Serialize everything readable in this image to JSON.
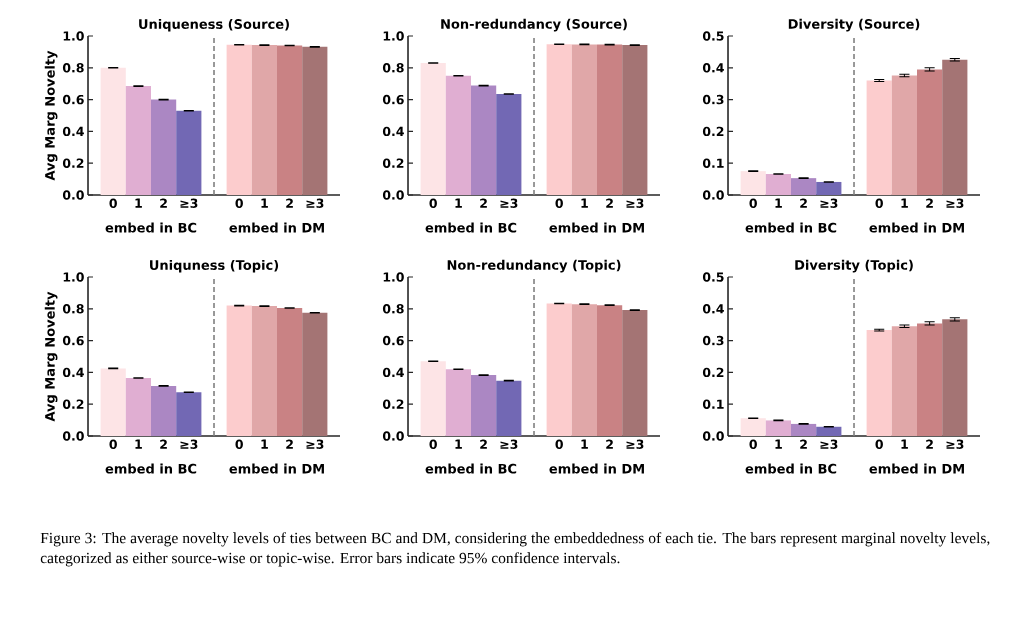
{
  "chart_data": [
    {
      "type": "bar",
      "title": "Uniqueness (Source)",
      "ylabel": "Avg Marg Novelty",
      "categories": [
        "0",
        "1",
        "2",
        "≥3",
        null,
        "0",
        "1",
        "2",
        "≥3"
      ],
      "values": [
        0.8,
        0.685,
        0.6,
        0.53,
        null,
        0.945,
        0.943,
        0.94,
        0.932
      ],
      "errors": [
        0.002,
        0.002,
        0.002,
        0.002,
        null,
        0.002,
        0.002,
        0.002,
        0.002
      ],
      "colors": [
        "#fde4e6",
        "#e0aed2",
        "#ab87c3",
        "#7268b4",
        "#ffffff",
        "#fccccd",
        "#e0a7a8",
        "#c98284",
        "#a47474"
      ],
      "ylim": [
        0,
        1
      ],
      "yticks": [
        {
          "value": 0,
          "label": "0.0"
        },
        {
          "value": 0.2,
          "label": "0.2"
        },
        {
          "value": 0.4,
          "label": "0.4"
        },
        {
          "value": 0.6,
          "label": "0.6"
        },
        {
          "value": 0.8,
          "label": "0.8"
        },
        {
          "value": 1,
          "label": "1.0"
        }
      ],
      "annotations": [
        "embed in BC",
        "embed in DM",
        "Figure 3: The average novelty levels of ties between BC and DM, considering the embeddedness of each tie. The bars represent marginal novelty levels, categorized as either source-wise or topic-wise. Error bars indicate 95% confidence intervals."
      ]
    },
    {
      "type": "bar",
      "title": "Non-redundancy (Source)",
      "categories": [
        "0",
        "1",
        "2",
        "≥3",
        null,
        "0",
        "1",
        "2",
        "≥3"
      ],
      "values": [
        0.83,
        0.75,
        0.688,
        0.635,
        null,
        0.948,
        0.947,
        0.946,
        0.943
      ],
      "errors": [
        0.002,
        0.002,
        0.002,
        0.002,
        null,
        0.002,
        0.002,
        0.002,
        0.002
      ],
      "colors": [
        "#fde4e6",
        "#e0aed2",
        "#ab87c3",
        "#7268b4",
        "#ffffff",
        "#fccccd",
        "#e0a7a8",
        "#c98284",
        "#a47474"
      ],
      "ylim": [
        0,
        1
      ],
      "yticks": [
        {
          "value": 0,
          "label": "0.0"
        },
        {
          "value": 0.2,
          "label": "0.2"
        },
        {
          "value": 0.4,
          "label": "0.4"
        },
        {
          "value": 0.6,
          "label": "0.6"
        },
        {
          "value": 0.8,
          "label": "0.8"
        },
        {
          "value": 1,
          "label": "1.0"
        }
      ],
      "annotations": [
        "embed in BC",
        "embed in DM"
      ]
    },
    {
      "type": "bar",
      "title": "Diversity (Source)",
      "categories": [
        "0",
        "1",
        "2",
        "≥3",
        null,
        "0",
        "1",
        "2",
        "≥3"
      ],
      "values": [
        0.075,
        0.066,
        0.053,
        0.041,
        null,
        0.36,
        0.376,
        0.395,
        0.425
      ],
      "errors": [
        0.001,
        0.001,
        0.001,
        0.001,
        null,
        0.003,
        0.004,
        0.005,
        0.004
      ],
      "colors": [
        "#fde4e6",
        "#e0aed2",
        "#ab87c3",
        "#7268b4",
        "#ffffff",
        "#fccccd",
        "#e0a7a8",
        "#c98284",
        "#a47474"
      ],
      "ylim": [
        0,
        0.5
      ],
      "yticks": [
        {
          "value": 0,
          "label": "0.0"
        },
        {
          "value": 0.1,
          "label": "0.1"
        },
        {
          "value": 0.2,
          "label": "0.2"
        },
        {
          "value": 0.3,
          "label": "0.3"
        },
        {
          "value": 0.4,
          "label": "0.4"
        },
        {
          "value": 0.5,
          "label": "0.5"
        }
      ],
      "annotations": [
        "embed in BC",
        "embed in DM"
      ]
    },
    {
      "type": "bar",
      "title": "Uniquness (Topic)",
      "ylabel": "Avg Marg Novelty",
      "categories": [
        "0",
        "1",
        "2",
        "≥3",
        null,
        "0",
        "1",
        "2",
        "≥3"
      ],
      "values": [
        0.425,
        0.365,
        0.315,
        0.275,
        null,
        0.82,
        0.817,
        0.805,
        0.775
      ],
      "errors": [
        0.002,
        0.002,
        0.002,
        0.002,
        null,
        0.002,
        0.002,
        0.002,
        0.002
      ],
      "colors": [
        "#fde4e6",
        "#e0aed2",
        "#ab87c3",
        "#7268b4",
        "#ffffff",
        "#fccccd",
        "#e0a7a8",
        "#c98284",
        "#a47474"
      ],
      "ylim": [
        0,
        1
      ],
      "yticks": [
        {
          "value": 0,
          "label": "0.0"
        },
        {
          "value": 0.2,
          "label": "0.2"
        },
        {
          "value": 0.4,
          "label": "0.4"
        },
        {
          "value": 0.6,
          "label": "0.6"
        },
        {
          "value": 0.8,
          "label": "0.8"
        },
        {
          "value": 1,
          "label": "1.0"
        }
      ],
      "annotations": [
        "embed in BC",
        "embed in DM"
      ]
    },
    {
      "type": "bar",
      "title": "Non-redundancy (Topic)",
      "categories": [
        "0",
        "1",
        "2",
        "≥3",
        null,
        "0",
        "1",
        "2",
        "≥3"
      ],
      "values": [
        0.47,
        0.42,
        0.383,
        0.348,
        null,
        0.833,
        0.829,
        0.823,
        0.792
      ],
      "errors": [
        0.002,
        0.002,
        0.002,
        0.002,
        null,
        0.002,
        0.002,
        0.002,
        0.002
      ],
      "colors": [
        "#fde4e6",
        "#e0aed2",
        "#ab87c3",
        "#7268b4",
        "#ffffff",
        "#fccccd",
        "#e0a7a8",
        "#c98284",
        "#a47474"
      ],
      "ylim": [
        0,
        1
      ],
      "yticks": [
        {
          "value": 0,
          "label": "0.0"
        },
        {
          "value": 0.2,
          "label": "0.2"
        },
        {
          "value": 0.4,
          "label": "0.4"
        },
        {
          "value": 0.6,
          "label": "0.6"
        },
        {
          "value": 0.8,
          "label": "0.8"
        },
        {
          "value": 1,
          "label": "1.0"
        }
      ],
      "annotations": [
        "embed in BC",
        "embed in DM"
      ]
    },
    {
      "type": "bar",
      "title": "Diversity (Topic)",
      "categories": [
        "0",
        "1",
        "2",
        "≥3",
        null,
        "0",
        "1",
        "2",
        "≥3"
      ],
      "values": [
        0.056,
        0.049,
        0.038,
        0.029,
        null,
        0.333,
        0.345,
        0.354,
        0.367
      ],
      "errors": [
        0.001,
        0.001,
        0.001,
        0.001,
        null,
        0.003,
        0.004,
        0.005,
        0.005
      ],
      "colors": [
        "#fde4e6",
        "#e0aed2",
        "#ab87c3",
        "#7268b4",
        "#ffffff",
        "#fccccd",
        "#e0a7a8",
        "#c98284",
        "#a47474"
      ],
      "ylim": [
        0,
        0.5
      ],
      "yticks": [
        {
          "value": 0,
          "label": "0.0"
        },
        {
          "value": 0.1,
          "label": "0.1"
        },
        {
          "value": 0.2,
          "label": "0.2"
        },
        {
          "value": 0.3,
          "label": "0.3"
        },
        {
          "value": 0.4,
          "label": "0.4"
        },
        {
          "value": 0.5,
          "label": "0.5"
        }
      ],
      "annotations": [
        "embed in BC",
        "embed in DM"
      ]
    }
  ]
}
